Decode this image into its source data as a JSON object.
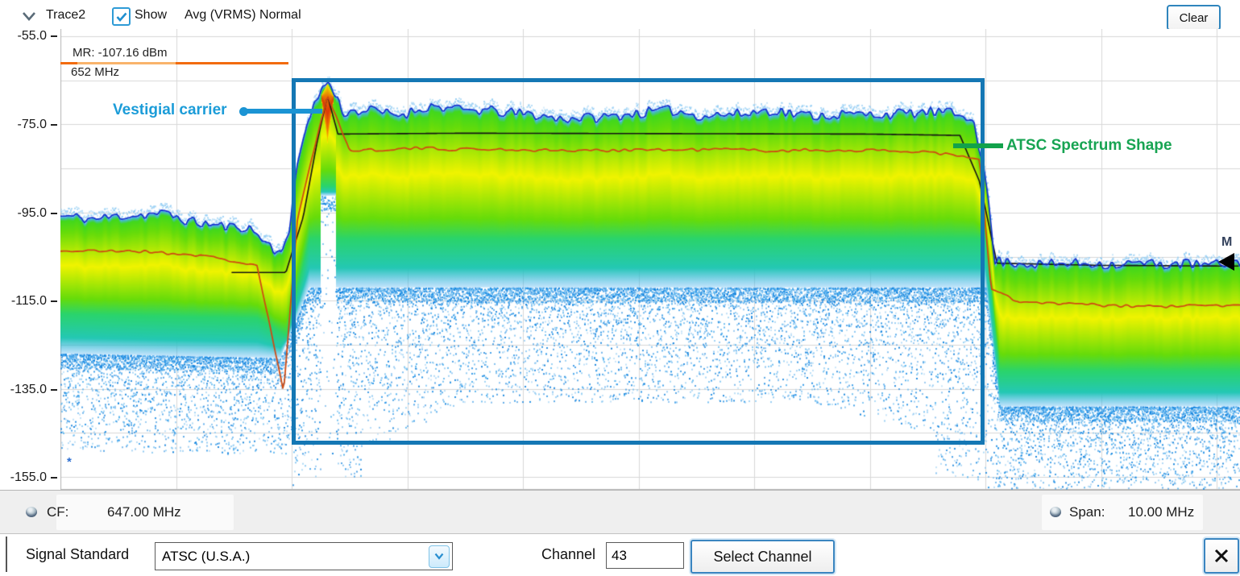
{
  "header": {
    "trace_label": "Trace2",
    "show_label": "Show",
    "show_checked": true,
    "trace_mode": "Avg (VRMS) Normal",
    "clear_button": "Clear"
  },
  "plot": {
    "y_ticks": [
      "-55.0",
      "-75.0",
      "-95.0",
      "-115.0",
      "-135.0",
      "-155.0"
    ],
    "marker_readout": {
      "line1": "MR: -107.16 dBm",
      "line2": "652 MHz"
    },
    "marker_flag": "M",
    "bottom_left_glyph": "*",
    "annotations": {
      "vestigial": "Vestigial carrier",
      "shape": "ATSC Spectrum Shape"
    },
    "footer": {
      "cf_label": "CF:",
      "cf_value": "647.00 MHz",
      "span_label": "Span:",
      "span_value": "10.00 MHz"
    }
  },
  "bottom_bar": {
    "signal_standard_label": "Signal Standard",
    "signal_standard_value": "ATSC (U.S.A.)",
    "channel_label": "Channel",
    "channel_value": "43",
    "select_channel_button": "Select Channel",
    "close_button": "X"
  },
  "colors": {
    "annotation_blue": "#1b9cd8",
    "annotation_green": "#17a452",
    "channel_box_blue": "#1477b4",
    "marker_orange": "#f26b0c",
    "accent_blue": "#2f85bd"
  },
  "chart_data": {
    "type": "heatmap",
    "title": "DPX-style density spectrum of ATSC channel 43 (Trace2, Avg VRMS Normal)",
    "x_axis": {
      "center_MHz": 647.0,
      "span_MHz": 10.0,
      "start_MHz": 642.0,
      "stop_MHz": 652.0,
      "grid_step_MHz": 1.0
    },
    "y_axis": {
      "unit": "dBm",
      "min": -155.0,
      "max": -55.0,
      "grid_step_dB": 10,
      "labeled_ticks": [
        -55,
        -75,
        -95,
        -115,
        -135,
        -155
      ]
    },
    "grid": true,
    "marker": {
      "id": "M",
      "freq_MHz": 652.0,
      "level_dBm": -107.16
    },
    "channel_box": {
      "f_MHz": [
        644.0,
        650.0
      ],
      "level_dBm": [
        -64.5,
        -147.7
      ]
    },
    "vestigial_carrier": {
      "freq_MHz": 644.31,
      "peak_dBm": -65.0
    },
    "traces": {
      "max_density": {
        "color": "#1233cc",
        "jitter_dB": 1.2,
        "slow_jitter_dB": 0.9,
        "points": [
          [
            642.0,
            -95.5
          ],
          [
            642.6,
            -95.8
          ],
          [
            643.0,
            -96.2
          ],
          [
            643.6,
            -97.8
          ],
          [
            643.88,
            -104.5
          ],
          [
            643.98,
            -100.0
          ],
          [
            644.05,
            -84.0
          ],
          [
            644.15,
            -73.0
          ],
          [
            644.31,
            -65.0
          ],
          [
            644.45,
            -72.5
          ],
          [
            645.0,
            -71.8
          ],
          [
            645.6,
            -71.5
          ],
          [
            646.3,
            -74.0
          ],
          [
            647.0,
            -73.0
          ],
          [
            647.8,
            -72.3
          ],
          [
            648.6,
            -72.8
          ],
          [
            649.4,
            -71.8
          ],
          [
            649.9,
            -72.5
          ],
          [
            650.02,
            -90.0
          ],
          [
            650.08,
            -105.5
          ],
          [
            650.5,
            -106.5
          ],
          [
            651.0,
            -106.0
          ],
          [
            651.5,
            -107.0
          ],
          [
            652.2,
            -106.3
          ]
        ]
      },
      "average": {
        "color": "#cf4b12",
        "jitter_dB": 0.35,
        "slow_jitter_dB": 0.3,
        "points": [
          [
            642.0,
            -103.8
          ],
          [
            642.6,
            -103.5
          ],
          [
            643.2,
            -104.5
          ],
          [
            643.7,
            -107.0
          ],
          [
            643.93,
            -136.0
          ],
          [
            644.05,
            -97.0
          ],
          [
            644.18,
            -82.0
          ],
          [
            644.31,
            -68.2
          ],
          [
            644.5,
            -81.0
          ],
          [
            645.5,
            -80.3
          ],
          [
            646.5,
            -80.8
          ],
          [
            647.5,
            -80.6
          ],
          [
            648.5,
            -80.9
          ],
          [
            649.5,
            -81.3
          ],
          [
            649.95,
            -83.0
          ],
          [
            650.05,
            -112.0
          ],
          [
            650.3,
            -115.5
          ],
          [
            651.0,
            -115.9
          ],
          [
            652.2,
            -116.2
          ]
        ]
      },
      "spectrum_shape": {
        "color": "#141414",
        "points": [
          [
            643.48,
            -108.6
          ],
          [
            643.95,
            -108.6
          ],
          [
            644.1,
            -96.0
          ],
          [
            644.22,
            -79.0
          ],
          [
            644.31,
            -68.5
          ],
          [
            644.4,
            -77.2
          ],
          [
            645.5,
            -77.0
          ],
          [
            649.0,
            -77.2
          ],
          [
            649.78,
            -77.5
          ],
          [
            649.95,
            -88.0
          ],
          [
            650.1,
            -106.5
          ],
          [
            651.0,
            -107.0
          ],
          [
            652.2,
            -107.16
          ]
        ]
      }
    },
    "density": {
      "solid_bottom_dBm": [
        [
          642.0,
          -118
        ],
        [
          643.7,
          -119
        ],
        [
          643.95,
          -123
        ],
        [
          644.15,
          -101
        ],
        [
          650.0,
          -101
        ],
        [
          650.12,
          -131
        ],
        [
          652.2,
          -131
        ]
      ],
      "cyan_bottom_dBm": [
        [
          642.0,
          -127
        ],
        [
          643.9,
          -128
        ],
        [
          644.15,
          -112
        ],
        [
          650.0,
          -112
        ],
        [
          650.12,
          -139
        ],
        [
          652.2,
          -139
        ]
      ],
      "speckle_bottom_dBm": [
        [
          642.0,
          -149
        ],
        [
          643.95,
          -150
        ],
        [
          644.1,
          -146
        ],
        [
          644.8,
          -147
        ],
        [
          645.5,
          -138
        ],
        [
          648.5,
          -138
        ],
        [
          649.5,
          -145
        ],
        [
          650.0,
          -147
        ],
        [
          650.15,
          -158
        ],
        [
          652.2,
          -159
        ]
      ],
      "spike_gap_MHz": [
        644.25,
        644.38
      ],
      "palette": {
        "edge": "#44b4f2",
        "green": "#42d81c",
        "green2": "#66dc0a",
        "yellow": "#f0f400",
        "teal": "#2ad46c",
        "cyan": "#24c8b4",
        "speckles": [
          "#1e8fe6",
          "#54b2ee",
          "#0c7fdc",
          "#8cc8f2"
        ],
        "halo": "#90ccf4",
        "hot_core": [
          "#f5ee00",
          "#f07800",
          "#e03008"
        ]
      }
    }
  }
}
